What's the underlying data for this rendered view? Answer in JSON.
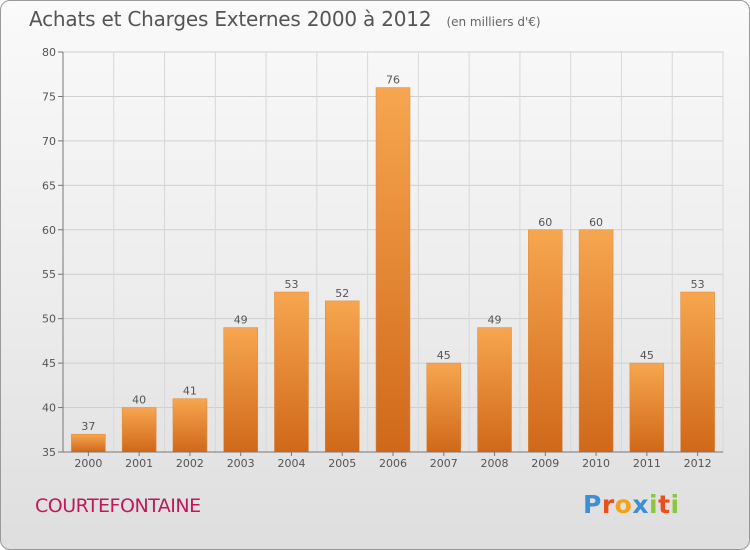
{
  "header": {
    "title": "Achats et Charges Externes 2000 à 2012",
    "unit": "(en milliers d'€)"
  },
  "footer": {
    "commune": "COURTEFONTAINE",
    "logo_letters": [
      "P",
      "r",
      "o",
      "x",
      "i",
      "t",
      "i"
    ]
  },
  "colors": {
    "bar_light": "#f7a650",
    "bar_dark": "#d0681a",
    "commune": "#c0185a",
    "logo": [
      "#3a8fd6",
      "#e94e1b",
      "#f4a11c",
      "#3a8fd6",
      "#8cc63f",
      "#e94e1b",
      "#8cc63f"
    ]
  },
  "chart_data": {
    "type": "bar",
    "title": "Achats et Charges Externes 2000 à 2012",
    "subtitle": "(en milliers d'€)",
    "categories": [
      "2000",
      "2001",
      "2002",
      "2003",
      "2004",
      "2005",
      "2006",
      "2007",
      "2008",
      "2009",
      "2010",
      "2011",
      "2012"
    ],
    "values": [
      37,
      40,
      41,
      49,
      53,
      52,
      76,
      45,
      49,
      60,
      60,
      45,
      53
    ],
    "ylim": [
      35,
      80
    ],
    "yticks": [
      35,
      40,
      45,
      50,
      55,
      60,
      65,
      70,
      75,
      80
    ],
    "grid": true,
    "legend": "none"
  }
}
